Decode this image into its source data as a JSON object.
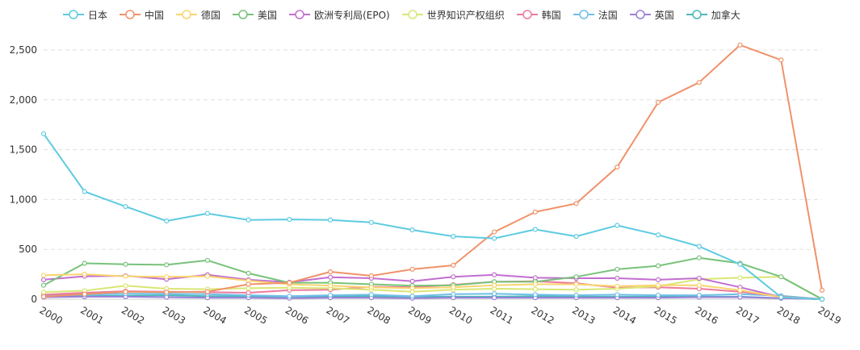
{
  "chart_data": {
    "type": "line",
    "title": "",
    "xlabel": "",
    "ylabel": "",
    "ylim": [
      0,
      2500
    ],
    "grid": true,
    "legend_position": "top",
    "categories": [
      "2000",
      "2001",
      "2002",
      "2003",
      "2004",
      "2005",
      "2006",
      "2007",
      "2008",
      "2009",
      "2010",
      "2011",
      "2012",
      "2013",
      "2014",
      "2015",
      "2016",
      "2017",
      "2018",
      "2019"
    ],
    "y_ticks": [
      "0",
      "500",
      "1,000",
      "1,500",
      "2,000",
      "2,500"
    ],
    "y_tick_values": [
      0,
      500,
      1000,
      1500,
      2000,
      2500
    ],
    "series": [
      {
        "name": "日本",
        "color": "#5ecbe0",
        "values": [
          1660,
          1080,
          930,
          785,
          860,
          795,
          800,
          795,
          770,
          695,
          630,
          610,
          700,
          630,
          740,
          645,
          530,
          350,
          20,
          0
        ]
      },
      {
        "name": "中国",
        "color": "#f0926a",
        "values": [
          25,
          50,
          75,
          70,
          75,
          150,
          165,
          275,
          235,
          300,
          340,
          675,
          875,
          960,
          1325,
          1975,
          2175,
          2550,
          2400,
          90
        ]
      },
      {
        "name": "德国",
        "color": "#f9d56e",
        "values": [
          240,
          250,
          230,
          225,
          230,
          185,
          150,
          135,
          120,
          110,
          120,
          140,
          150,
          150,
          130,
          140,
          140,
          90,
          20,
          0
        ]
      },
      {
        "name": "美国",
        "color": "#78c27a",
        "values": [
          140,
          360,
          350,
          345,
          390,
          260,
          165,
          165,
          150,
          135,
          140,
          175,
          175,
          225,
          300,
          335,
          415,
          360,
          225,
          0
        ]
      },
      {
        "name": "欧洲专利局(EPO)",
        "color": "#c26ed0",
        "values": [
          195,
          230,
          235,
          200,
          245,
          195,
          170,
          220,
          210,
          180,
          225,
          245,
          215,
          210,
          210,
          195,
          210,
          120,
          20,
          0
        ]
      },
      {
        "name": "世界知识产权组织",
        "color": "#d9e673",
        "values": [
          70,
          85,
          135,
          105,
          100,
          110,
          115,
          110,
          95,
          75,
          95,
          105,
          100,
          95,
          105,
          130,
          200,
          215,
          225,
          0
        ]
      },
      {
        "name": "韩国",
        "color": "#ec7a9c",
        "values": [
          45,
          65,
          80,
          75,
          70,
          65,
          90,
          95,
          125,
          120,
          145,
          175,
          180,
          160,
          115,
          120,
          105,
          75,
          25,
          0
        ]
      },
      {
        "name": "法国",
        "color": "#6fbfe8",
        "values": [
          40,
          45,
          55,
          55,
          50,
          40,
          30,
          40,
          45,
          30,
          50,
          55,
          45,
          40,
          45,
          40,
          40,
          50,
          35,
          0
        ]
      },
      {
        "name": "英国",
        "color": "#9b7fdb",
        "values": [
          20,
          25,
          25,
          20,
          15,
          15,
          10,
          15,
          15,
          10,
          15,
          15,
          15,
          15,
          15,
          15,
          20,
          20,
          10,
          0
        ]
      },
      {
        "name": "加拿大",
        "color": "#4db8b5",
        "values": [
          30,
          30,
          35,
          40,
          30,
          30,
          25,
          25,
          30,
          25,
          25,
          25,
          30,
          25,
          25,
          25,
          25,
          25,
          10,
          0
        ]
      }
    ]
  }
}
